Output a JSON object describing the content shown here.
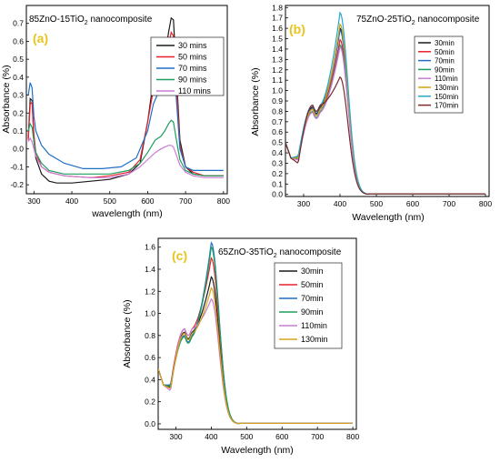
{
  "chart_data": [
    {
      "type": "line",
      "panel_label": "(a)",
      "title": {
        "pre": "85ZnO-15TiO",
        "sub": "2",
        "post": " nanocomposite"
      },
      "xlabel": "wavelength (nm)",
      "ylabel": "Absorbance (%)",
      "xlim": [
        280,
        810
      ],
      "ylim": [
        -0.25,
        0.8
      ],
      "xticks": [
        300,
        400,
        500,
        600,
        700,
        800
      ],
      "yticks": [
        -0.2,
        -0.1,
        0.0,
        0.1,
        0.2,
        0.3,
        0.4,
        0.5,
        0.6,
        0.7
      ],
      "ytick_labels": [
        "-0.2",
        "-0.1",
        "0.0",
        "0.1",
        "0.2",
        "0.3",
        "0.4",
        "0.5",
        "0.6",
        "0.7"
      ],
      "legend": "top-right",
      "series": [
        {
          "name": "30 mins",
          "color": "#1a1a1a",
          "points": [
            [
              285,
              0.06
            ],
            [
              290,
              0.28
            ],
            [
              295,
              0.27
            ],
            [
              300,
              0.05
            ],
            [
              305,
              -0.05
            ],
            [
              320,
              -0.14
            ],
            [
              340,
              -0.18
            ],
            [
              360,
              -0.19
            ],
            [
              400,
              -0.19
            ],
            [
              450,
              -0.18
            ],
            [
              500,
              -0.17
            ],
            [
              550,
              -0.14
            ],
            [
              580,
              -0.08
            ],
            [
              600,
              0.15
            ],
            [
              615,
              0.38
            ],
            [
              625,
              0.45
            ],
            [
              635,
              0.43
            ],
            [
              645,
              0.5
            ],
            [
              655,
              0.65
            ],
            [
              662,
              0.73
            ],
            [
              668,
              0.72
            ],
            [
              675,
              0.45
            ],
            [
              685,
              0.05
            ],
            [
              700,
              -0.1
            ],
            [
              720,
              -0.14
            ],
            [
              750,
              -0.15
            ],
            [
              800,
              -0.15
            ]
          ]
        },
        {
          "name": "50 mins",
          "color": "#e8202a",
          "points": [
            [
              285,
              0.05
            ],
            [
              290,
              0.25
            ],
            [
              295,
              0.26
            ],
            [
              300,
              0.08
            ],
            [
              305,
              -0.02
            ],
            [
              320,
              -0.1
            ],
            [
              340,
              -0.13
            ],
            [
              380,
              -0.15
            ],
            [
              450,
              -0.16
            ],
            [
              500,
              -0.15
            ],
            [
              550,
              -0.13
            ],
            [
              580,
              -0.06
            ],
            [
              600,
              0.15
            ],
            [
              615,
              0.33
            ],
            [
              625,
              0.4
            ],
            [
              635,
              0.38
            ],
            [
              645,
              0.45
            ],
            [
              655,
              0.57
            ],
            [
              662,
              0.65
            ],
            [
              668,
              0.63
            ],
            [
              675,
              0.4
            ],
            [
              685,
              0.02
            ],
            [
              700,
              -0.1
            ],
            [
              720,
              -0.13
            ],
            [
              750,
              -0.15
            ],
            [
              800,
              -0.15
            ]
          ]
        },
        {
          "name": "70 mins",
          "color": "#1f6fc5",
          "points": [
            [
              285,
              0.3
            ],
            [
              290,
              0.37
            ],
            [
              295,
              0.34
            ],
            [
              300,
              0.18
            ],
            [
              305,
              0.1
            ],
            [
              320,
              0.02
            ],
            [
              340,
              -0.03
            ],
            [
              380,
              -0.08
            ],
            [
              430,
              -0.11
            ],
            [
              480,
              -0.11
            ],
            [
              530,
              -0.1
            ],
            [
              570,
              -0.05
            ],
            [
              600,
              0.1
            ],
            [
              615,
              0.25
            ],
            [
              625,
              0.3
            ],
            [
              635,
              0.31
            ],
            [
              645,
              0.37
            ],
            [
              655,
              0.44
            ],
            [
              662,
              0.48
            ],
            [
              668,
              0.47
            ],
            [
              675,
              0.3
            ],
            [
              685,
              0.0
            ],
            [
              700,
              -0.1
            ],
            [
              720,
              -0.12
            ],
            [
              750,
              -0.12
            ],
            [
              800,
              -0.12
            ]
          ]
        },
        {
          "name": "90 mins",
          "color": "#1e9e5e",
          "points": [
            [
              285,
              0.1
            ],
            [
              290,
              0.14
            ],
            [
              295,
              0.12
            ],
            [
              300,
              0.04
            ],
            [
              305,
              -0.02
            ],
            [
              320,
              -0.08
            ],
            [
              340,
              -0.12
            ],
            [
              380,
              -0.14
            ],
            [
              450,
              -0.14
            ],
            [
              500,
              -0.14
            ],
            [
              550,
              -0.12
            ],
            [
              580,
              -0.08
            ],
            [
              600,
              -0.02
            ],
            [
              620,
              0.05
            ],
            [
              635,
              0.07
            ],
            [
              645,
              0.1
            ],
            [
              655,
              0.14
            ],
            [
              662,
              0.16
            ],
            [
              668,
              0.15
            ],
            [
              675,
              0.06
            ],
            [
              685,
              -0.06
            ],
            [
              700,
              -0.12
            ],
            [
              720,
              -0.14
            ],
            [
              750,
              -0.15
            ],
            [
              800,
              -0.15
            ]
          ]
        },
        {
          "name": "110 mins",
          "color": "#c97bd6",
          "points": [
            [
              285,
              0.04
            ],
            [
              290,
              0.06
            ],
            [
              295,
              0.04
            ],
            [
              300,
              0.0
            ],
            [
              305,
              -0.04
            ],
            [
              320,
              -0.1
            ],
            [
              340,
              -0.13
            ],
            [
              380,
              -0.15
            ],
            [
              450,
              -0.16
            ],
            [
              500,
              -0.16
            ],
            [
              550,
              -0.14
            ],
            [
              580,
              -0.1
            ],
            [
              600,
              -0.06
            ],
            [
              620,
              -0.02
            ],
            [
              635,
              0.0
            ],
            [
              645,
              0.01
            ],
            [
              655,
              0.02
            ],
            [
              662,
              0.02
            ],
            [
              668,
              0.01
            ],
            [
              675,
              -0.03
            ],
            [
              685,
              -0.09
            ],
            [
              700,
              -0.13
            ],
            [
              720,
              -0.15
            ],
            [
              750,
              -0.16
            ],
            [
              800,
              -0.16
            ]
          ]
        }
      ]
    },
    {
      "type": "line",
      "panel_label": "(b)",
      "title": {
        "pre": "75ZnO-25TiO",
        "sub": "2",
        "post": " nanocomposite"
      },
      "xlabel": "Wavelength (nm)",
      "ylabel": "Absorbance (%)",
      "xlim": [
        250,
        810
      ],
      "ylim": [
        -0.02,
        1.82
      ],
      "xticks": [
        300,
        400,
        500,
        600,
        700,
        800
      ],
      "yticks": [
        0.0,
        0.1,
        0.2,
        0.3,
        0.4,
        0.5,
        0.6,
        0.7,
        0.8,
        0.9,
        1.0,
        1.1,
        1.2,
        1.3,
        1.4,
        1.5,
        1.6,
        1.7,
        1.8
      ],
      "ytick_labels": [
        "0.0",
        "0.1",
        "0.2",
        "0.3",
        "0.4",
        "0.5",
        "0.6",
        "0.7",
        "0.8",
        "0.9",
        "1.0",
        "1.1",
        "1.2",
        "1.3",
        "1.4",
        "1.5",
        "1.6",
        "1.7",
        "1.8"
      ],
      "legend": "right",
      "series": [
        {
          "name": "30min",
          "color": "#1a1a1a",
          "peak": 1.6,
          "shoulder": 0.84,
          "valley": 0.36
        },
        {
          "name": "50min",
          "color": "#e8202a",
          "peak": 1.49,
          "shoulder": 0.82,
          "valley": 0.35
        },
        {
          "name": "70min",
          "color": "#1f6fc5",
          "peak": 1.58,
          "shoulder": 0.83,
          "valley": 0.36
        },
        {
          "name": "90min",
          "color": "#1e9e5e",
          "peak": 1.44,
          "shoulder": 0.8,
          "valley": 0.34
        },
        {
          "name": "110min",
          "color": "#c97bd6",
          "peak": 1.42,
          "shoulder": 0.79,
          "valley": 0.33
        },
        {
          "name": "130min",
          "color": "#d6a318",
          "peak": 1.64,
          "shoulder": 0.82,
          "valley": 0.35
        },
        {
          "name": "150min",
          "color": "#2aa8c8",
          "peak": 1.75,
          "shoulder": 0.86,
          "valley": 0.37
        },
        {
          "name": "170min",
          "color": "#7a2a2a",
          "peak": 1.13,
          "shoulder": 0.86,
          "valley": 0.3
        }
      ]
    },
    {
      "type": "line",
      "panel_label": "(c)",
      "title": {
        "pre": "65ZnO-35TiO",
        "sub": "2",
        "post": " nanocomposite"
      },
      "xlabel": "Wavelength (nm)",
      "ylabel": "Absorbance (%)",
      "xlim": [
        250,
        810
      ],
      "ylim": [
        -0.05,
        1.68
      ],
      "xticks": [
        300,
        400,
        500,
        600,
        700,
        800
      ],
      "yticks": [
        0.0,
        0.2,
        0.4,
        0.6,
        0.8,
        1.0,
        1.2,
        1.4,
        1.6
      ],
      "ytick_labels": [
        "0.0",
        "0.2",
        "0.4",
        "0.6",
        "0.8",
        "1.0",
        "1.2",
        "1.4",
        "1.6"
      ],
      "legend": "right",
      "series": [
        {
          "name": "30min",
          "color": "#1a1a1a",
          "peak": 1.33,
          "shoulder": 0.83,
          "valley": 0.33
        },
        {
          "name": "50min",
          "color": "#e8202a",
          "peak": 1.5,
          "shoulder": 0.86,
          "valley": 0.35
        },
        {
          "name": "70min",
          "color": "#1f6fc5",
          "peak": 1.64,
          "shoulder": 0.8,
          "valley": 0.35
        },
        {
          "name": "90min",
          "color": "#1e9e5e",
          "peak": 1.6,
          "shoulder": 0.79,
          "valley": 0.34
        },
        {
          "name": "110min",
          "color": "#c97bd6",
          "peak": 1.13,
          "shoulder": 0.86,
          "valley": 0.3
        },
        {
          "name": "130min",
          "color": "#d6a318",
          "peak": 1.23,
          "shoulder": 0.82,
          "valley": 0.32
        }
      ]
    }
  ]
}
